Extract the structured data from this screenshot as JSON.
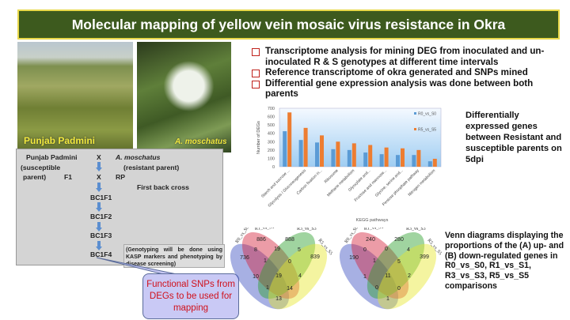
{
  "title": "Molecular mapping of yellow vein mosaic virus resistance in Okra",
  "photos": [
    {
      "label": "Punjab Padmini"
    },
    {
      "label": "A. moschatus"
    }
  ],
  "bullets": [
    "Transcriptome analysis for mining DEG from inoculated and un-inoculated R & S genotypes at  different time intervals",
    "Reference transcriptome of okra generated and SNPs mined",
    "Differential gene  expression analysis was done between both parents"
  ],
  "side_text": "Differentially expressed genes between Resistant and susceptible parents on 5dpi",
  "cross": {
    "p1": "Punjab Padmini",
    "x1": "X",
    "p2": "A. moschatus",
    "s1": "(susceptible",
    "s2": "parent)",
    "r1": "(resistant parent)",
    "f1": "F1",
    "x2": "X",
    "rp": "RP",
    "first": "First back cross",
    "gens": [
      "BC1F1",
      "BC1F2",
      "BC1F3",
      "BC1F4"
    ],
    "note": "(Genotyping will be done using KASP markers and phenotyping by disease screening)"
  },
  "callout": "Functional SNPs from DEGs to be used for mapping",
  "venn_text": "Venn diagrams displaying the proportions of the (A) up- and (B) down-regulated genes in R0_vs_S0, R1_vs_S1, R3_vs_S3, R5_vs_S5 comparisons",
  "venns": [
    {
      "labels": [
        "R0_vs_S0",
        "R1_vs_S1",
        "R3_vs_S3",
        "R5_vs_S5"
      ],
      "values": [
        "886",
        "888",
        "736",
        "839",
        "8",
        "19",
        "5",
        "1",
        "0",
        "10",
        "19",
        "4",
        "1",
        "14",
        "13"
      ]
    },
    {
      "labels": [
        "R0_vs_S0",
        "R1_vs_S1",
        "R3_vs_S3",
        "R5_vs_S5"
      ],
      "values": [
        "240",
        "280",
        "190",
        "399",
        "0",
        "0",
        "4",
        "1",
        "5",
        "1",
        "11",
        "2",
        "0",
        "0",
        "1"
      ]
    }
  ],
  "chart_data": {
    "type": "bar",
    "title": "",
    "xlabel": "KEGG pathways",
    "ylabel": "Number of DEGs",
    "ylim": [
      0,
      700
    ],
    "yticks": [
      0,
      100,
      200,
      300,
      400,
      500,
      600,
      700
    ],
    "categories": [
      "Starch and sucrose ...",
      "Glycolysis / Gluconeogenesis",
      "Carbon fixation in...",
      "Ribosome",
      "Methane metabolism",
      "Glyoxylate and...",
      "Fructose and mannose...",
      "Glycine, serine and...",
      "Pentose phosphate pathway",
      "Nitrogen metabolism"
    ],
    "series": [
      {
        "name": "R0_vs_S0",
        "color": "#5b9bd5",
        "values": [
          425,
          320,
          290,
          210,
          200,
          170,
          150,
          140,
          140,
          65
        ]
      },
      {
        "name": "R5_vs_S5",
        "color": "#ed7d31",
        "values": [
          650,
          465,
          375,
          300,
          280,
          260,
          230,
          220,
          200,
          95
        ]
      }
    ],
    "legend": "top-right"
  }
}
